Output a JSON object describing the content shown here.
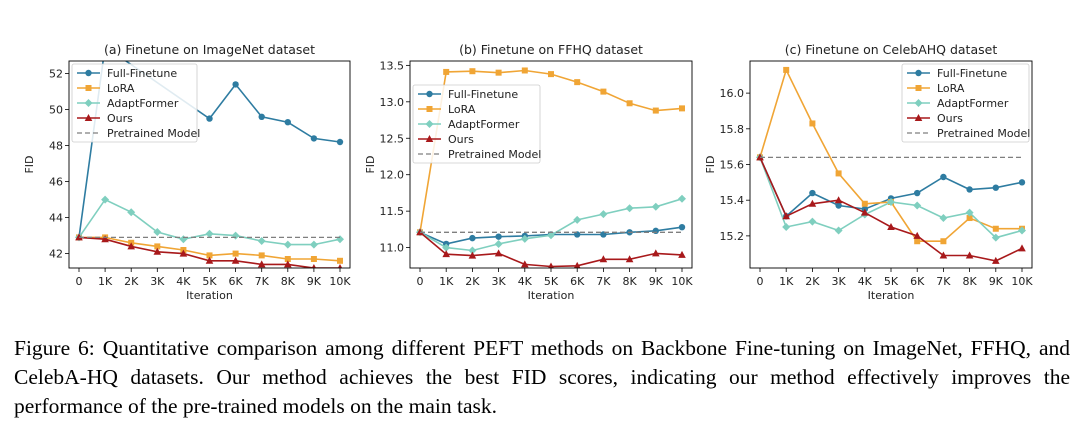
{
  "figure_caption": "Figure 6: Quantitative comparison among different PEFT methods on Backbone Fine-tuning on ImageNet, FFHQ, and CelebA-HQ datasets. Our method achieves the best FID scores, indicating our method effectively improves the performance of the pre-trained models on the main task.",
  "series_styles": [
    {
      "name": "Full-Finetune",
      "color": "#2e7ca1",
      "marker": "circle"
    },
    {
      "name": "LoRA",
      "color": "#f0a535",
      "marker": "square"
    },
    {
      "name": "AdaptFormer",
      "color": "#7fcfbf",
      "marker": "diamond"
    },
    {
      "name": "Ours",
      "color": "#a8191b",
      "marker": "triangle"
    },
    {
      "name": "Pretrained Model",
      "color": "#7f7f7f",
      "marker": "dashed"
    }
  ],
  "chart_data": [
    {
      "type": "line",
      "title": "(a) Finetune on ImageNet dataset",
      "xlabel": "Iteration",
      "ylabel": "FID",
      "categories": [
        "0",
        "1K",
        "2K",
        "3K",
        "4K",
        "5K",
        "6K",
        "7K",
        "8K",
        "9K",
        "10K"
      ],
      "ylim": [
        41.2,
        52.7
      ],
      "yticks": [
        "42",
        "44",
        "46",
        "48",
        "50",
        "52"
      ],
      "legend_position": "top-left",
      "series": [
        {
          "name": "Full-Finetune",
          "values": [
            42.9,
            53.5,
            null,
            null,
            null,
            49.5,
            51.4,
            49.6,
            49.3,
            48.4,
            48.2
          ]
        },
        {
          "name": "LoRA",
          "values": [
            42.9,
            42.9,
            42.6,
            42.4,
            42.2,
            41.9,
            42.0,
            41.9,
            41.7,
            41.7,
            41.6
          ]
        },
        {
          "name": "AdaptFormer",
          "values": [
            42.9,
            45.0,
            44.3,
            43.2,
            42.8,
            43.1,
            43.0,
            42.7,
            42.5,
            42.5,
            42.8
          ]
        },
        {
          "name": "Ours",
          "values": [
            42.9,
            42.8,
            42.4,
            42.1,
            42.0,
            41.6,
            41.6,
            41.4,
            41.4,
            41.2,
            41.2
          ]
        },
        {
          "name": "Pretrained Model",
          "values": [
            42.9,
            42.9,
            42.9,
            42.9,
            42.9,
            42.9,
            42.9,
            42.9,
            42.9,
            42.9,
            42.9
          ]
        }
      ]
    },
    {
      "type": "line",
      "title": "(b) Finetune on FFHQ dataset",
      "xlabel": "Iteration",
      "ylabel": "FID",
      "categories": [
        "0",
        "1K",
        "2K",
        "3K",
        "4K",
        "5K",
        "6K",
        "7K",
        "8K",
        "9K",
        "10K"
      ],
      "ylim": [
        10.72,
        13.56
      ],
      "yticks": [
        "11.0",
        "11.5",
        "12.0",
        "12.5",
        "13.0",
        "13.5"
      ],
      "legend_position": "center-left",
      "series": [
        {
          "name": "Full-Finetune",
          "values": [
            11.21,
            11.05,
            11.13,
            11.15,
            11.16,
            11.18,
            11.18,
            11.18,
            11.21,
            11.23,
            11.28
          ]
        },
        {
          "name": "LoRA",
          "values": [
            11.21,
            13.41,
            13.42,
            13.4,
            13.43,
            13.38,
            13.27,
            13.14,
            12.98,
            12.88,
            12.91
          ]
        },
        {
          "name": "AdaptFormer",
          "values": [
            11.21,
            11.0,
            10.96,
            11.05,
            11.12,
            11.17,
            11.38,
            11.46,
            11.54,
            11.56,
            11.67
          ]
        },
        {
          "name": "Ours",
          "values": [
            11.21,
            10.91,
            10.89,
            10.92,
            10.77,
            10.74,
            10.75,
            10.84,
            10.84,
            10.92,
            10.9
          ]
        },
        {
          "name": "Pretrained Model",
          "values": [
            11.21,
            11.21,
            11.21,
            11.21,
            11.21,
            11.21,
            11.21,
            11.21,
            11.21,
            11.21,
            11.21
          ]
        }
      ]
    },
    {
      "type": "line",
      "title": "(c) Finetune on CelebAHQ dataset",
      "xlabel": "Iteration",
      "ylabel": "FID",
      "categories": [
        "0",
        "1K",
        "2K",
        "3K",
        "4K",
        "5K",
        "6K",
        "7K",
        "8K",
        "9K",
        "10K"
      ],
      "ylim": [
        15.02,
        16.18
      ],
      "yticks": [
        "15.2",
        "15.4",
        "15.6",
        "15.8",
        "16.0"
      ],
      "legend_position": "top-right",
      "series": [
        {
          "name": "Full-Finetune",
          "values": [
            15.64,
            15.31,
            15.44,
            15.37,
            15.35,
            15.41,
            15.44,
            15.53,
            15.46,
            15.47,
            15.5
          ]
        },
        {
          "name": "LoRA",
          "values": [
            15.64,
            16.13,
            15.83,
            15.55,
            15.38,
            15.39,
            15.17,
            15.17,
            15.3,
            15.24,
            15.24
          ]
        },
        {
          "name": "AdaptFormer",
          "values": [
            15.64,
            15.25,
            15.28,
            15.23,
            15.32,
            15.39,
            15.37,
            15.3,
            15.33,
            15.19,
            15.23
          ]
        },
        {
          "name": "Ours",
          "values": [
            15.64,
            15.31,
            15.38,
            15.4,
            15.33,
            15.25,
            15.2,
            15.09,
            15.09,
            15.06,
            15.13
          ]
        },
        {
          "name": "Pretrained Model",
          "values": [
            15.64,
            15.64,
            15.64,
            15.64,
            15.64,
            15.64,
            15.64,
            15.64,
            15.64,
            15.64,
            15.64
          ]
        }
      ]
    }
  ]
}
